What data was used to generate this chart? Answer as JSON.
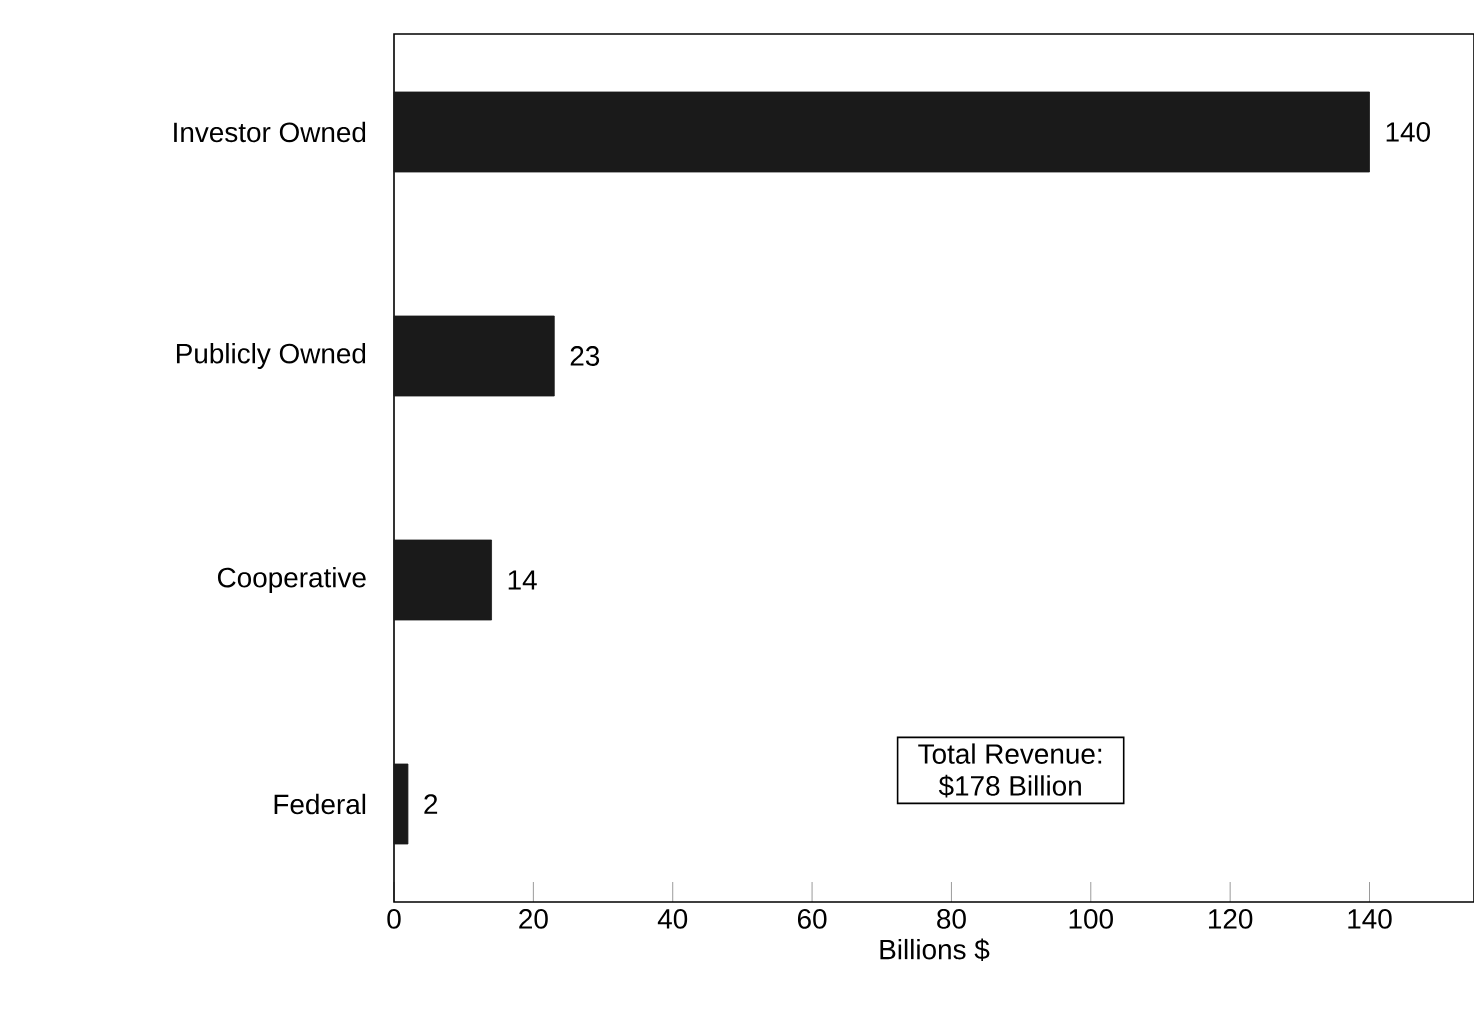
{
  "chart_data": {
    "type": "bar",
    "orientation": "horizontal",
    "xlabel": "Billions $",
    "categories": [
      "Investor Owned",
      "Publicly Owned",
      "Cooperative",
      "Federal"
    ],
    "values": [
      140,
      23,
      14,
      2
    ],
    "color": "#1a1a1a",
    "xlim": [
      0,
      155
    ],
    "xticks": [
      0,
      20,
      40,
      60,
      80,
      100,
      120,
      140
    ],
    "data_labels": true,
    "grid": false,
    "annotations": [
      "Total Revenue:",
      "$178 Billion"
    ]
  }
}
